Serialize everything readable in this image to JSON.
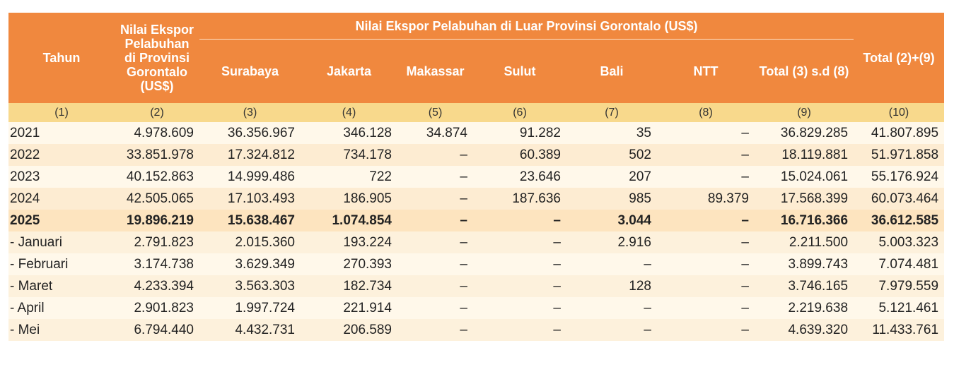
{
  "header": {
    "tahun": "Tahun",
    "gorontalo": "Nilai Ekspor Pelabuhan di Provinsi Gorontalo (US$)",
    "group": "Nilai Ekspor Pelabuhan di Luar Provinsi Gorontalo (US$)",
    "surabaya": "Surabaya",
    "jakarta": "Jakarta",
    "makassar": "Makassar",
    "sulut": "Sulut",
    "bali": "Bali",
    "ntt": "NTT",
    "total_luar": "Total (3) s.d (8)",
    "total": "Total (2)+(9)"
  },
  "col_numbers": [
    "(1)",
    "(2)",
    "(3)",
    "(4)",
    "(5)",
    "(6)",
    "(7)",
    "(8)",
    "(9)",
    "(10)"
  ],
  "rows": [
    {
      "cells": [
        "2021",
        "4.978.609",
        "36.356.967",
        "346.128",
        "34.874",
        "91.282",
        "35",
        "–",
        "36.829.285",
        "41.807.895"
      ]
    },
    {
      "cells": [
        "2022",
        "33.851.978",
        "17.324.812",
        "734.178",
        "–",
        "60.389",
        "502",
        "–",
        "18.119.881",
        "51.971.858"
      ]
    },
    {
      "cells": [
        "2023",
        "40.152.863",
        "14.999.486",
        "722",
        "–",
        "23.646",
        "207",
        "–",
        "15.024.061",
        "55.176.924"
      ]
    },
    {
      "cells": [
        "2024",
        "42.505.065",
        "17.103.493",
        "186.905",
        "–",
        "187.636",
        "985",
        "89.379",
        "17.568.399",
        "60.073.464"
      ]
    },
    {
      "cells": [
        "2025",
        "19.896.219",
        "15.638.467",
        "1.074.854",
        "–",
        "–",
        "3.044",
        "–",
        "16.716.366",
        "36.612.585"
      ],
      "bold": true
    },
    {
      "cells": [
        "- Januari",
        "2.791.823",
        "2.015.360",
        "193.224",
        "–",
        "–",
        "2.916",
        "–",
        "2.211.500",
        "5.003.323"
      ]
    },
    {
      "cells": [
        "- Februari",
        "3.174.738",
        "3.629.349",
        "270.393",
        "–",
        "–",
        "–",
        "–",
        "3.899.743",
        "7.074.481"
      ]
    },
    {
      "cells": [
        "- Maret",
        "4.233.394",
        "3.563.303",
        "182.734",
        "–",
        "–",
        "128",
        "–",
        "3.746.165",
        "7.979.559"
      ]
    },
    {
      "cells": [
        "- April",
        "2.901.823",
        "1.997.724",
        "221.914",
        "–",
        "–",
        "–",
        "–",
        "2.219.638",
        "5.121.461"
      ]
    },
    {
      "cells": [
        "- Mei",
        "6.794.440",
        "4.432.731",
        "206.589",
        "–",
        "–",
        "–",
        "–",
        "4.639.320",
        "11.433.761"
      ]
    }
  ]
}
